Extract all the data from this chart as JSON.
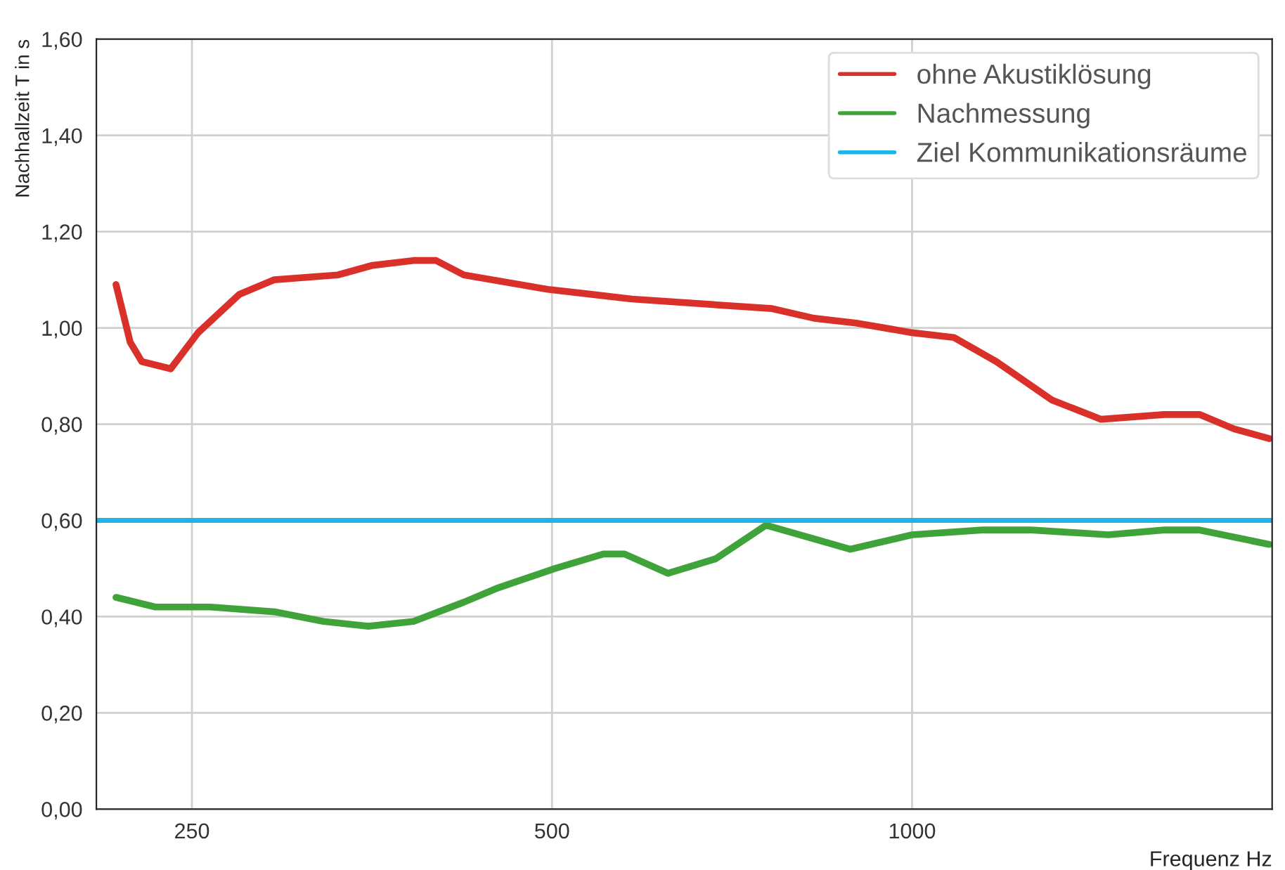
{
  "chart_data": {
    "type": "line",
    "xlabel": "Frequenz Hz",
    "ylabel": "Nachhallzeit T in s",
    "series": [
      {
        "name": "ohne Akustiklösung",
        "color": "#d9302a",
        "x": [
          216,
          222,
          227,
          240,
          253,
          274,
          293,
          331,
          354,
          383,
          400,
          422,
          496,
          538,
          583,
          764,
          828,
          898,
          1000,
          1084,
          1176,
          1309,
          1439,
          1625,
          1739,
          1859,
          1989
        ],
        "values": [
          1.09,
          0.97,
          0.93,
          0.915,
          0.99,
          1.07,
          1.1,
          1.11,
          1.13,
          1.14,
          1.14,
          1.11,
          1.08,
          1.07,
          1.06,
          1.04,
          1.02,
          1.01,
          0.99,
          0.98,
          0.93,
          0.85,
          0.81,
          0.82,
          0.82,
          0.79,
          0.77
        ]
      },
      {
        "name": "Nachmessung",
        "color": "#3fa33a",
        "x": [
          216,
          233,
          259,
          293,
          322,
          351,
          383,
          422,
          451,
          503,
          552,
          575,
          625,
          685,
          755,
          888,
          1000,
          1145,
          1258,
          1459,
          1625,
          1739,
          1989
        ],
        "values": [
          0.44,
          0.42,
          0.42,
          0.41,
          0.39,
          0.38,
          0.39,
          0.43,
          0.46,
          0.5,
          0.53,
          0.53,
          0.49,
          0.52,
          0.59,
          0.54,
          0.57,
          0.58,
          0.58,
          0.57,
          0.58,
          0.58,
          0.55
        ]
      }
    ],
    "ref_lines": [
      {
        "axis": "y",
        "value": 0.6,
        "label": "Ziel Kommunikationsräume",
        "color": "#1eb4e6"
      }
    ],
    "log": "x",
    "xlim": [
      208,
      2000
    ],
    "xticks": [
      250,
      500,
      1000
    ],
    "ylim": [
      0,
      1.6
    ],
    "yticks": [
      {
        "value": 0,
        "label": "0,00"
      },
      {
        "value": 0.2,
        "label": "0,20"
      },
      {
        "value": 0.4,
        "label": "0,40"
      },
      {
        "value": 0.6,
        "label": "0,60"
      },
      {
        "value": 0.8,
        "label": "0,80"
      },
      {
        "value": 1.0,
        "label": "1,00"
      },
      {
        "value": 1.2,
        "label": "1,20"
      },
      {
        "value": 1.4,
        "label": "1,40"
      },
      {
        "value": 1.6,
        "label": "1,60"
      }
    ],
    "grid": true,
    "legend": "top right",
    "line_style": "solid"
  }
}
